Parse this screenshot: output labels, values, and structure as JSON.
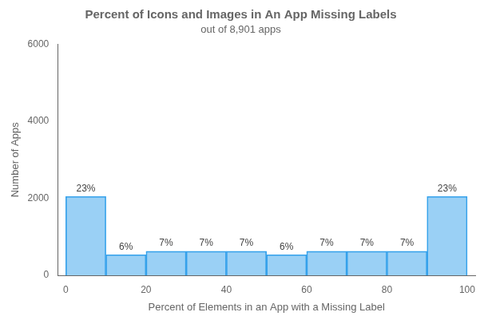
{
  "chart_data": {
    "type": "histogram",
    "title": "Percent of Icons and Images in An App Missing Labels",
    "subtitle": "out of 8,901 apps",
    "xlabel": "Percent of Elements in an App with a Missing Label",
    "ylabel": "Number of Apps",
    "bins": [
      0,
      10,
      20,
      30,
      40,
      50,
      60,
      70,
      80,
      90,
      100
    ],
    "values": [
      2047,
      534,
      623,
      623,
      623,
      534,
      623,
      623,
      623,
      2047
    ],
    "annotations": [
      "23%",
      "6%",
      "7%",
      "7%",
      "7%",
      "6%",
      "7%",
      "7%",
      "7%",
      "23%"
    ],
    "xlim": [
      -2,
      102
    ],
    "xticks": [
      0,
      20,
      40,
      60,
      80,
      100
    ],
    "ylim": [
      0,
      6000
    ],
    "yticks": [
      0,
      2000,
      4000,
      6000
    ],
    "grid": false
  }
}
